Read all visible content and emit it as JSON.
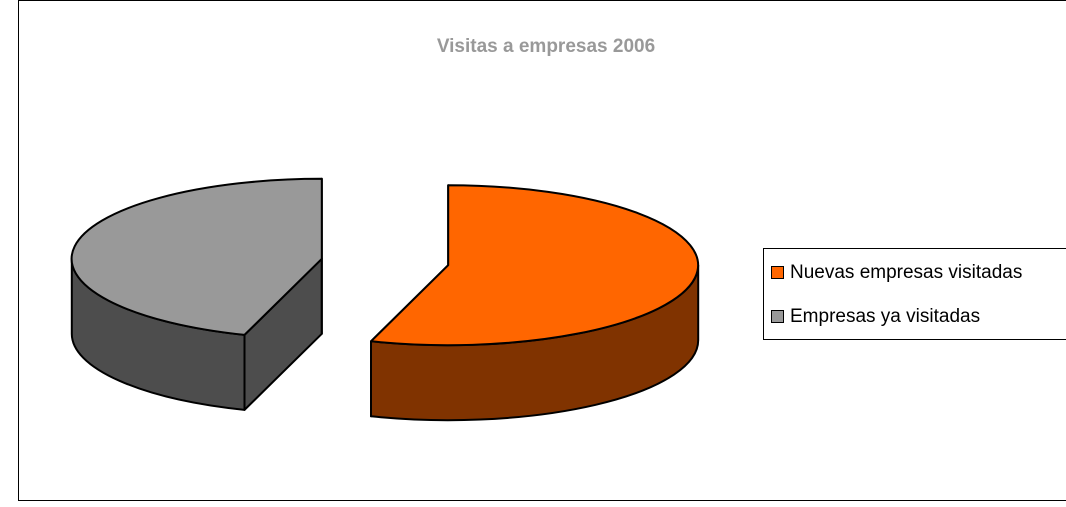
{
  "chart_data": {
    "type": "pie",
    "title": "Visitas a empresas 2006",
    "categories": [
      "Nuevas empresas visitadas",
      "Empresas ya visitadas"
    ],
    "values": [
      55,
      45
    ],
    "colors": [
      "#ff6600",
      "#999999"
    ],
    "side_colors": [
      "#803300",
      "#4d4d4d"
    ],
    "legend": "right"
  }
}
